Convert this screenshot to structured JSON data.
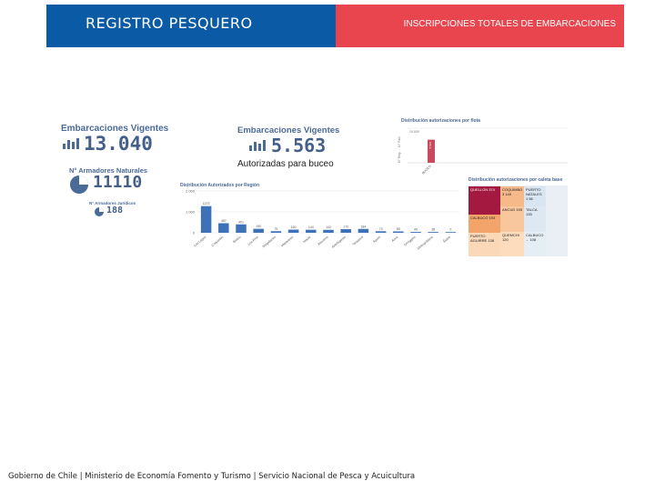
{
  "header": {
    "title": "REGISTRO PESQUERO",
    "subtitle": "INSCRIPCIONES TOTALES DE EMBARCACIONES",
    "left_color": "#0b5aa6",
    "right_color": "#e8454f"
  },
  "kpis": {
    "vigentes": {
      "title": "Embarcaciones Vigentes",
      "value": "13.040"
    },
    "armadores_naturales": {
      "title": "N° Armadores Naturales",
      "value": "11110"
    },
    "armadores_juridicos": {
      "title": "N° Armadores Jurídicos",
      "value": "188"
    },
    "buceo": {
      "title": "Embarcaciones Vigentes",
      "value": "5.563",
      "caption": "Autorizadas para buceo"
    }
  },
  "chart_data": [
    {
      "type": "bar",
      "title": "Distribución Autorizados por Región",
      "categories": [
        "Los Lagos",
        "Coquimbo",
        "Biobío",
        "Los Ríos",
        "Magallanes",
        "Valparaíso",
        "Maule",
        "Atacama",
        "Antofagasta",
        "Tarapacá",
        "Aysén",
        "Arica",
        "O'Higgins",
        "Metropolitana",
        "Ñuble"
      ],
      "values": [
        1273,
        457,
        401,
        190,
        75,
        150,
        144,
        142,
        172,
        184,
        73,
        65,
        40,
        38,
        0
      ],
      "value_labels": [
        "1273",
        "457",
        "401",
        "190",
        "75",
        "150",
        "144",
        "142",
        "172",
        "184",
        "73",
        "65",
        "40",
        "38",
        "0"
      ],
      "ytick_labels": [
        "2.000",
        "1.000",
        "0"
      ],
      "ylim": [
        0,
        2000
      ],
      "color": "#3e72b8"
    },
    {
      "type": "bar",
      "title": "Distribución autorizaciones por flota",
      "categories": [
        "BUCEO"
      ],
      "values": [
        5563
      ],
      "value_labels": [
        "5.563"
      ],
      "ylabel": "N° Reg. ... N° Part.",
      "ymax_label": "10.000",
      "color": "#c94a5a"
    }
  ],
  "caleta_table": {
    "title": "Distribución autorizaciones por caleta base",
    "cells": [
      {
        "text": "QUELLON 374",
        "color": "#a3193f"
      },
      {
        "text": "COQUIMBO 3 145",
        "color": "#f6b98a"
      },
      {
        "text": "PUERTO NATALES 1 56",
        "color": "#d9e6f1"
      },
      {
        "text": "CALBUCO 193",
        "color": "#f2a46a"
      },
      {
        "text": "ANCUD 155",
        "color": "#f8c79d"
      },
      {
        "text": "TALCA 135",
        "color": "#dde8f2"
      },
      {
        "text": "PUERTO AGUIRRE 138",
        "color": "#fbd8b8"
      },
      {
        "text": "QUEMCHI 120",
        "color": "#fcdcbd"
      },
      {
        "text": "CALBUCO ... 108",
        "color": "#e6eef5"
      }
    ]
  },
  "footer": {
    "text": "Gobierno de Chile | Ministerio de Economía Fomento y Turismo | Servicio Nacional de Pesca y Acuicultura"
  }
}
